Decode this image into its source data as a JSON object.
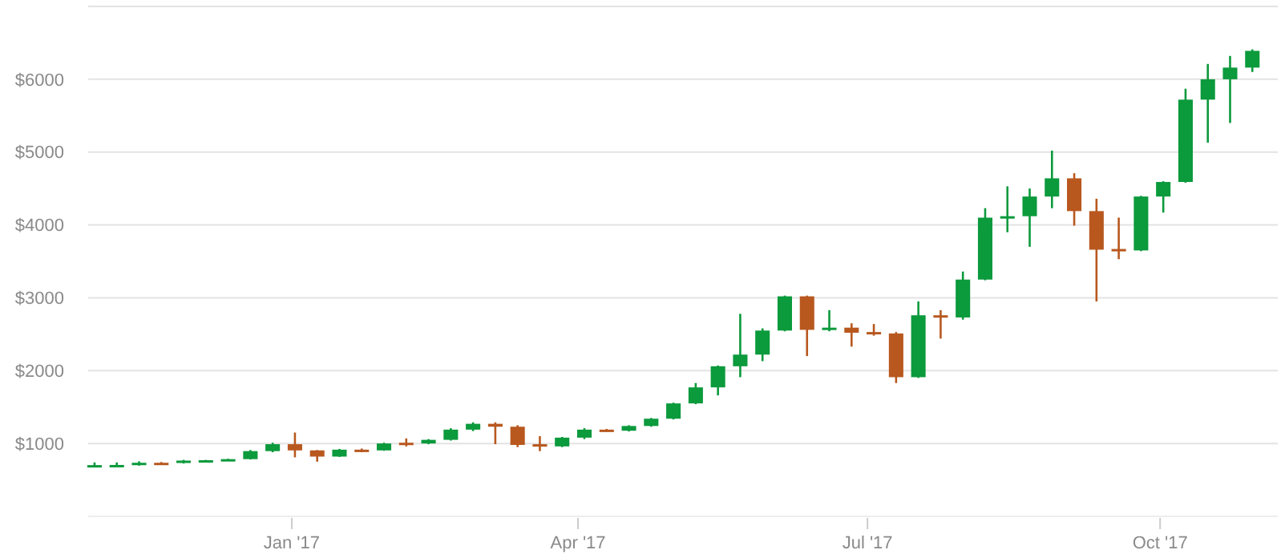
{
  "chart_data": {
    "type": "candlestick",
    "x": [
      "2016-10-31",
      "2016-11-07",
      "2016-11-14",
      "2016-11-21",
      "2016-11-28",
      "2016-12-05",
      "2016-12-12",
      "2016-12-19",
      "2016-12-26",
      "2017-01-02",
      "2017-01-09",
      "2017-01-16",
      "2017-01-23",
      "2017-01-30",
      "2017-02-06",
      "2017-02-13",
      "2017-02-20",
      "2017-02-27",
      "2017-03-06",
      "2017-03-13",
      "2017-03-20",
      "2017-03-27",
      "2017-04-03",
      "2017-04-10",
      "2017-04-17",
      "2017-04-24",
      "2017-05-01",
      "2017-05-08",
      "2017-05-15",
      "2017-05-22",
      "2017-05-29",
      "2017-06-05",
      "2017-06-12",
      "2017-06-19",
      "2017-06-26",
      "2017-07-03",
      "2017-07-10",
      "2017-07-17",
      "2017-07-24",
      "2017-07-31",
      "2017-08-07",
      "2017-08-14",
      "2017-08-21",
      "2017-08-28",
      "2017-09-04",
      "2017-09-11",
      "2017-09-18",
      "2017-09-25",
      "2017-10-02",
      "2017-10-09",
      "2017-10-16",
      "2017-10-23",
      "2017-10-30"
    ],
    "ohlc": [
      [
        700,
        740,
        685,
        703
      ],
      [
        703,
        740,
        695,
        705
      ],
      [
        705,
        755,
        695,
        735
      ],
      [
        735,
        745,
        725,
        732
      ],
      [
        732,
        775,
        725,
        765
      ],
      [
        765,
        775,
        755,
        770
      ],
      [
        770,
        790,
        760,
        785
      ],
      [
        785,
        910,
        780,
        895
      ],
      [
        895,
        1010,
        880,
        990
      ],
      [
        990,
        1150,
        810,
        905
      ],
      [
        905,
        910,
        750,
        820
      ],
      [
        820,
        925,
        815,
        915
      ],
      [
        915,
        930,
        880,
        905
      ],
      [
        905,
        1010,
        900,
        1000
      ],
      [
        1010,
        1070,
        960,
        1000
      ],
      [
        1000,
        1060,
        990,
        1050
      ],
      [
        1050,
        1210,
        1040,
        1190
      ],
      [
        1190,
        1290,
        1170,
        1270
      ],
      [
        1270,
        1290,
        990,
        1230
      ],
      [
        1230,
        1250,
        950,
        980
      ],
      [
        990,
        1100,
        895,
        960
      ],
      [
        960,
        1090,
        950,
        1080
      ],
      [
        1080,
        1210,
        1060,
        1190
      ],
      [
        1190,
        1200,
        1160,
        1175
      ],
      [
        1175,
        1250,
        1165,
        1240
      ],
      [
        1240,
        1350,
        1230,
        1340
      ],
      [
        1340,
        1560,
        1330,
        1550
      ],
      [
        1550,
        1830,
        1540,
        1770
      ],
      [
        1770,
        2070,
        1660,
        2060
      ],
      [
        2060,
        2780,
        1910,
        2220
      ],
      [
        2220,
        2580,
        2130,
        2550
      ],
      [
        2550,
        3030,
        2540,
        3020
      ],
      [
        3020,
        3030,
        2200,
        2560
      ],
      [
        2560,
        2830,
        2540,
        2590
      ],
      [
        2590,
        2650,
        2330,
        2520
      ],
      [
        2530,
        2640,
        2480,
        2510
      ],
      [
        2510,
        2530,
        1830,
        1910
      ],
      [
        1910,
        2950,
        1900,
        2760
      ],
      [
        2760,
        2830,
        2440,
        2730
      ],
      [
        2730,
        3360,
        2700,
        3250
      ],
      [
        3250,
        4230,
        3240,
        4100
      ],
      [
        4100,
        4530,
        3900,
        4120
      ],
      [
        4120,
        4500,
        3700,
        4390
      ],
      [
        4390,
        5020,
        4230,
        4640
      ],
      [
        4640,
        4710,
        3990,
        4190
      ],
      [
        4190,
        4360,
        2950,
        3660
      ],
      [
        3670,
        4100,
        3530,
        3650
      ],
      [
        3650,
        4400,
        3640,
        4390
      ],
      [
        4390,
        4600,
        4170,
        4590
      ],
      [
        4590,
        5870,
        4580,
        5720
      ],
      [
        5720,
        6210,
        5130,
        6000
      ],
      [
        6000,
        6320,
        5400,
        6160
      ],
      [
        6160,
        6410,
        6100,
        6390
      ]
    ],
    "colors": [
      "#0b9a3c",
      "#0b9a3c",
      "#0b9a3c",
      "#b8581f",
      "#0b9a3c",
      "#0b9a3c",
      "#0b9a3c",
      "#0b9a3c",
      "#0b9a3c",
      "#b8581f",
      "#b8581f",
      "#0b9a3c",
      "#b8581f",
      "#0b9a3c",
      "#b8581f",
      "#0b9a3c",
      "#0b9a3c",
      "#0b9a3c",
      "#b8581f",
      "#b8581f",
      "#b8581f",
      "#0b9a3c",
      "#0b9a3c",
      "#b8581f",
      "#0b9a3c",
      "#0b9a3c",
      "#0b9a3c",
      "#0b9a3c",
      "#0b9a3c",
      "#0b9a3c",
      "#0b9a3c",
      "#0b9a3c",
      "#b8581f",
      "#0b9a3c",
      "#b8581f",
      "#b8581f",
      "#b8581f",
      "#0b9a3c",
      "#b8581f",
      "#0b9a3c",
      "#0b9a3c",
      "#0b9a3c",
      "#0b9a3c",
      "#0b9a3c",
      "#b8581f",
      "#b8581f",
      "#b8581f",
      "#0b9a3c",
      "#0b9a3c",
      "#0b9a3c",
      "#0b9a3c",
      "#0b9a3c",
      "#0b9a3c"
    ],
    "xlim": [
      "2016-10-29",
      "2017-11-07"
    ],
    "xticks": [
      {
        "value": "2017-01-01",
        "label": "Jan '17"
      },
      {
        "value": "2017-04-01",
        "label": "Apr '17"
      },
      {
        "value": "2017-07-01",
        "label": "Jul '17"
      },
      {
        "value": "2017-10-01",
        "label": "Oct '17"
      }
    ],
    "ylim": [
      0,
      7000
    ],
    "yticks": [
      {
        "value": 1000,
        "label": "$1000"
      },
      {
        "value": 2000,
        "label": "$2000"
      },
      {
        "value": 3000,
        "label": "$3000"
      },
      {
        "value": 4000,
        "label": "$4000"
      },
      {
        "value": 5000,
        "label": "$5000"
      },
      {
        "value": 6000,
        "label": "$6000"
      },
      {
        "value": 7000,
        "label": null
      }
    ],
    "grid": "y"
  }
}
